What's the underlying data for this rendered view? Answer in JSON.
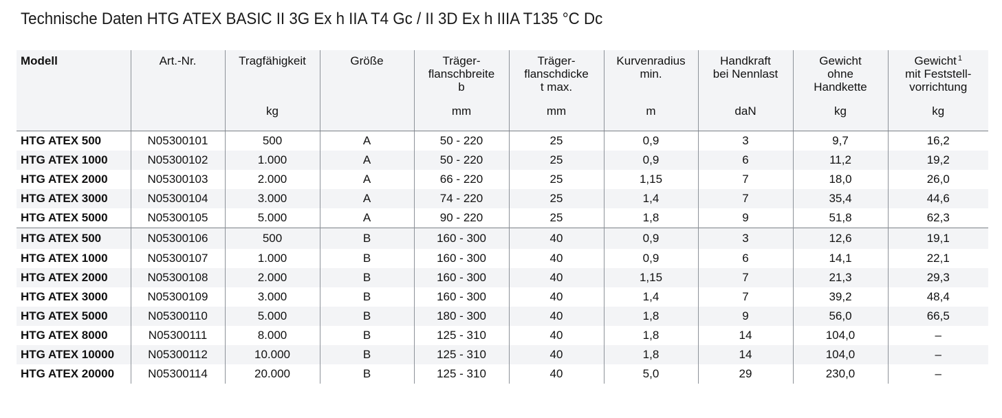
{
  "title": "Technische Daten HTG ATEX BASIC II 3G Ex h IIA T4 Gc / II 3D Ex h IIIA T135 °C Dc",
  "columns": [
    {
      "lines": [
        "Modell"
      ],
      "unit": ""
    },
    {
      "lines": [
        "Art.-Nr."
      ],
      "unit": ""
    },
    {
      "lines": [
        "Tragfähigkeit"
      ],
      "unit": "kg"
    },
    {
      "lines": [
        "Größe"
      ],
      "unit": ""
    },
    {
      "lines": [
        "Träger-",
        "flanschbreite",
        "b"
      ],
      "unit": "mm"
    },
    {
      "lines": [
        "Träger-",
        "flanschdicke",
        "t max."
      ],
      "unit": "mm"
    },
    {
      "lines": [
        "Kurvenradius",
        "min."
      ],
      "unit": "m"
    },
    {
      "lines": [
        "Handkraft",
        "bei Nennlast"
      ],
      "unit": "daN"
    },
    {
      "lines": [
        "Gewicht",
        "ohne",
        "Handkette"
      ],
      "unit": "kg"
    },
    {
      "lines": [
        "Gewicht",
        "mit Feststell-",
        "vorrichtung"
      ],
      "unit": "kg",
      "footnote": "1"
    }
  ],
  "rows": [
    [
      "HTG ATEX 500",
      "N05300101",
      "500",
      "A",
      "50 - 220",
      "25",
      "0,9",
      "3",
      "9,7",
      "16,2"
    ],
    [
      "HTG ATEX 1000",
      "N05300102",
      "1.000",
      "A",
      "50 - 220",
      "25",
      "0,9",
      "6",
      "11,2",
      "19,2"
    ],
    [
      "HTG ATEX 2000",
      "N05300103",
      "2.000",
      "A",
      "66 - 220",
      "25",
      "1,15",
      "7",
      "18,0",
      "26,0"
    ],
    [
      "HTG ATEX 3000",
      "N05300104",
      "3.000",
      "A",
      "74 - 220",
      "25",
      "1,4",
      "7",
      "35,4",
      "44,6"
    ],
    [
      "HTG ATEX 5000",
      "N05300105",
      "5.000",
      "A",
      "90 - 220",
      "25",
      "1,8",
      "9",
      "51,8",
      "62,3"
    ],
    [
      "HTG ATEX 500",
      "N05300106",
      "500",
      "B",
      "160 - 300",
      "40",
      "0,9",
      "3",
      "12,6",
      "19,1"
    ],
    [
      "HTG ATEX 1000",
      "N05300107",
      "1.000",
      "B",
      "160 - 300",
      "40",
      "0,9",
      "6",
      "14,1",
      "22,1"
    ],
    [
      "HTG ATEX 2000",
      "N05300108",
      "2.000",
      "B",
      "160 - 300",
      "40",
      "1,15",
      "7",
      "21,3",
      "29,3"
    ],
    [
      "HTG ATEX 3000",
      "N05300109",
      "3.000",
      "B",
      "160 - 300",
      "40",
      "1,4",
      "7",
      "39,2",
      "48,4"
    ],
    [
      "HTG ATEX 5000",
      "N05300110",
      "5.000",
      "B",
      "180 - 300",
      "40",
      "1,8",
      "9",
      "56,0",
      "66,5"
    ],
    [
      "HTG ATEX 8000",
      "N05300111",
      "8.000",
      "B",
      "125 - 310",
      "40",
      "1,8",
      "14",
      "104,0",
      "–"
    ],
    [
      "HTG ATEX 10000",
      "N05300112",
      "10.000",
      "B",
      "125 - 310",
      "40",
      "1,8",
      "14",
      "104,0",
      "–"
    ],
    [
      "HTG ATEX 20000",
      "N05300114",
      "20.000",
      "B",
      "125 - 310",
      "40",
      "5,0",
      "29",
      "230,0",
      "–"
    ]
  ]
}
